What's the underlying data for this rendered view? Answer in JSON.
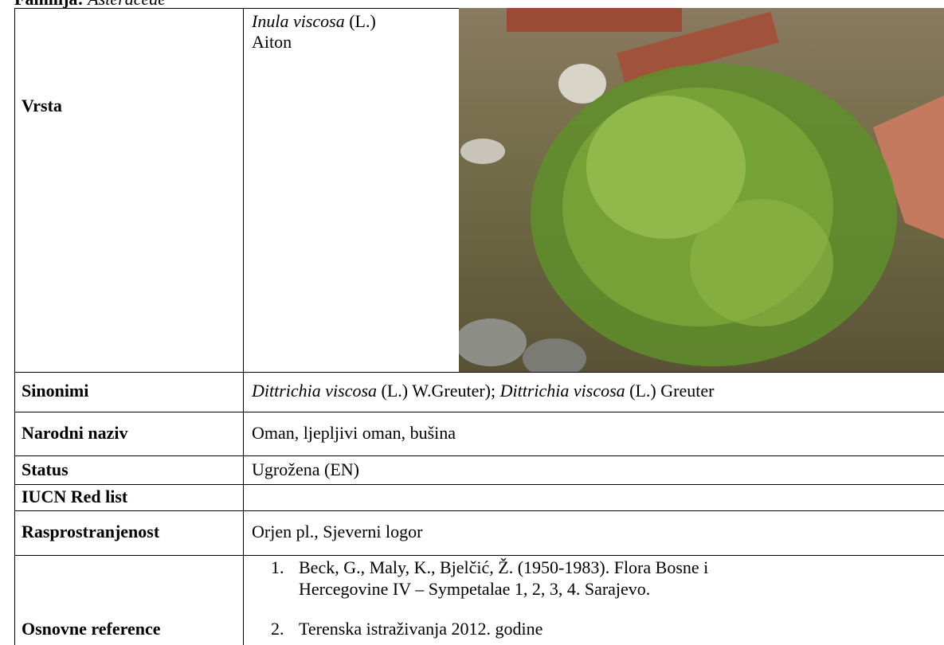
{
  "header": {
    "label": "Familija:",
    "family": "Asteraceae"
  },
  "table": {
    "rows": [
      {
        "label": "Vrsta",
        "value": [
          "Inula viscosa",
          " (L.)",
          "Aiton"
        ]
      },
      {
        "label": "Sinonimi",
        "value": [
          "Dittrichia viscosa",
          " (L.) W.Greuter); ",
          "Dittrichia viscosa",
          " (L.) Greuter"
        ]
      },
      {
        "label": "Narodni naziv",
        "value": [
          "Oman, ljepljivi oman, bušina"
        ]
      },
      {
        "label": "Status",
        "value": [
          "Ugrožena (EN)"
        ]
      },
      {
        "label": "IUCN Red list",
        "value": []
      },
      {
        "label": "Rasprostranjenost",
        "value": [
          "Orjen pl., Sjeverni logor"
        ]
      },
      {
        "label": "Osnovne reference",
        "references": [
          {
            "number": "1.",
            "lines": [
              "Beck, G., Maly, K., Bjelčić, Ž. (1950-1983). Flora Bosne i",
              "Hercegovine IV – Sympetalae 1, 2, 3, 4. Sarajevo."
            ]
          },
          {
            "number": "2.",
            "lines": [
              "Terenska istraživanja 2012. godine"
            ]
          }
        ]
      }
    ]
  }
}
